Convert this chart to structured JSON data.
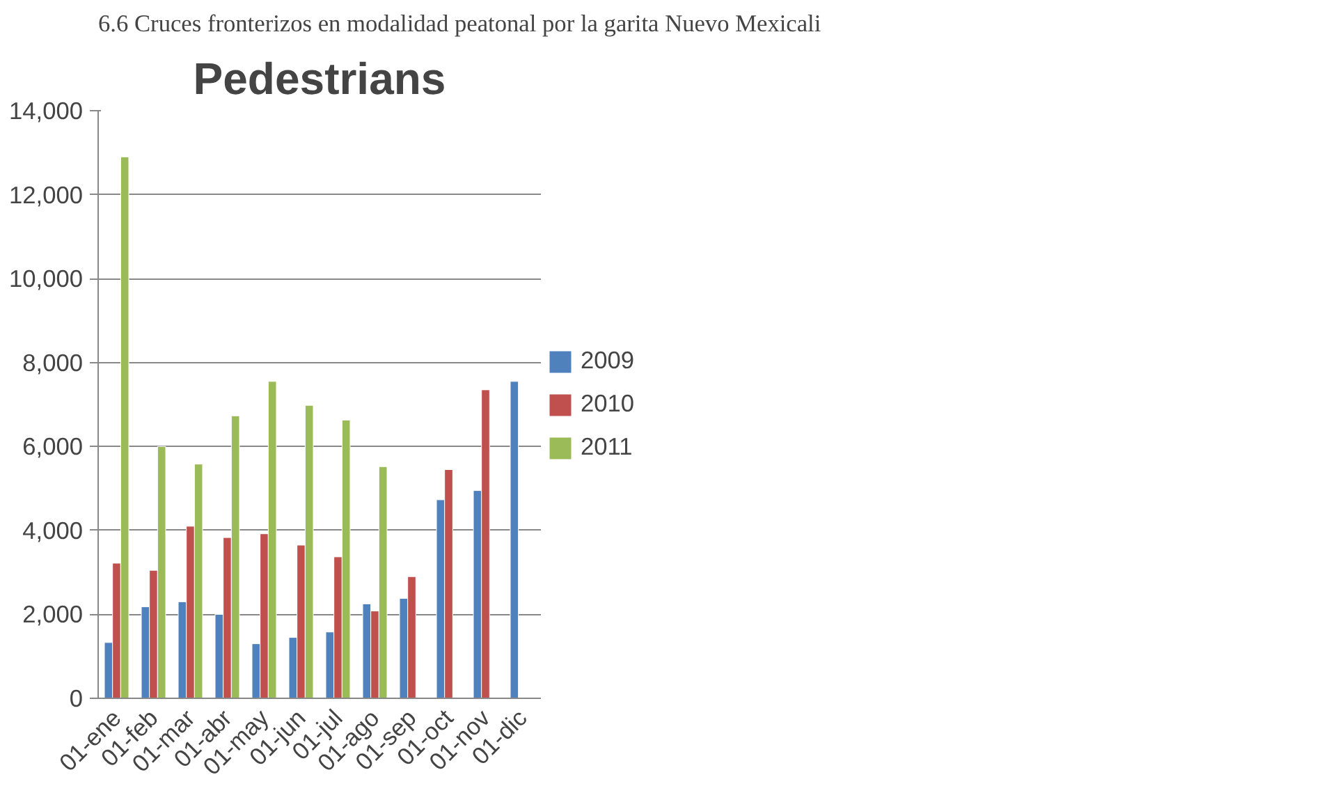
{
  "chart_data": {
    "type": "bar",
    "title": "Pedestrians",
    "annotations": [
      "6.6 Cruces fronterizos en modalidad peatonal por la garita Nuevo Mexicali"
    ],
    "categories": [
      "01-ene",
      "01-feb",
      "01-mar",
      "01-abr",
      "01-may",
      "01-jun",
      "01-jul",
      "01-ago",
      "01-sep",
      "01-oct",
      "01-nov",
      "01-dic"
    ],
    "series": [
      {
        "name": "2009",
        "color": "#4f81bd",
        "values": [
          1330,
          2180,
          2300,
          2000,
          1300,
          1450,
          1580,
          2250,
          2380,
          4730,
          4950,
          7550
        ]
      },
      {
        "name": "2010",
        "color": "#c0504d",
        "values": [
          3220,
          3050,
          4100,
          3830,
          3920,
          3650,
          3370,
          2080,
          2900,
          5450,
          7350,
          null
        ]
      },
      {
        "name": "2011",
        "color": "#9bbb59",
        "values": [
          12900,
          6000,
          5580,
          6730,
          7550,
          6980,
          6630,
          5520,
          null,
          null,
          null,
          null
        ]
      }
    ],
    "ylim": [
      0,
      14000
    ],
    "yticks": [
      {
        "value": 0,
        "label": "0"
      },
      {
        "value": 2000,
        "label": "2,000"
      },
      {
        "value": 4000,
        "label": "4,000"
      },
      {
        "value": 6000,
        "label": "6,000"
      },
      {
        "value": 8000,
        "label": "8,000"
      },
      {
        "value": 10000,
        "label": "10,000"
      },
      {
        "value": 12000,
        "label": "12,000"
      },
      {
        "value": 14000,
        "label": "14,000"
      }
    ],
    "grid": "y",
    "legend": "right"
  }
}
